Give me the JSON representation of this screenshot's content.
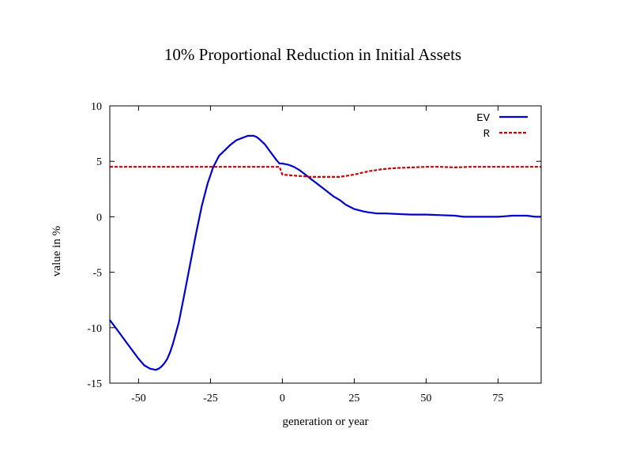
{
  "chart_data": {
    "type": "line",
    "title": "10% Proportional Reduction in Initial Assets",
    "xlabel": "generation or year",
    "ylabel": "value in %",
    "xlim": [
      -60,
      90
    ],
    "ylim": [
      -15,
      10
    ],
    "xticks": [
      -50,
      -25,
      0,
      25,
      50,
      75
    ],
    "yticks": [
      10,
      5,
      0,
      -5,
      -10,
      -15
    ],
    "grid": false,
    "legend_position": "top-right",
    "series": [
      {
        "name": "EV",
        "color": "#0000cc",
        "style": "solid",
        "x": [
          -60,
          -58,
          -56,
          -54,
          -52,
          -50,
          -48,
          -46,
          -44,
          -43,
          -42,
          -41,
          -40,
          -39,
          -38,
          -36,
          -34,
          -32,
          -30,
          -28,
          -26,
          -24,
          -22,
          -20,
          -18,
          -16,
          -14,
          -12,
          -10,
          -9,
          -8,
          -6,
          -4,
          -2,
          -1,
          0,
          2,
          4,
          6,
          8,
          10,
          12,
          14,
          16,
          18,
          20,
          22,
          25,
          28,
          30,
          33,
          36,
          40,
          45,
          50,
          55,
          60,
          63,
          65,
          70,
          75,
          80,
          85,
          88,
          90
        ],
        "y": [
          -9.3,
          -10.0,
          -10.7,
          -11.4,
          -12.1,
          -12.8,
          -13.4,
          -13.7,
          -13.8,
          -13.7,
          -13.5,
          -13.2,
          -12.8,
          -12.2,
          -11.4,
          -9.5,
          -6.9,
          -4.2,
          -1.5,
          1.0,
          3.0,
          4.5,
          5.5,
          6.0,
          6.5,
          6.9,
          7.1,
          7.3,
          7.3,
          7.2,
          7.0,
          6.5,
          5.8,
          5.1,
          4.8,
          4.8,
          4.7,
          4.5,
          4.2,
          3.8,
          3.4,
          3.0,
          2.6,
          2.2,
          1.8,
          1.5,
          1.1,
          0.7,
          0.5,
          0.4,
          0.3,
          0.3,
          0.25,
          0.2,
          0.2,
          0.15,
          0.1,
          0.0,
          0.0,
          0.0,
          0.0,
          0.1,
          0.1,
          0.0,
          0.0
        ]
      },
      {
        "name": "R",
        "color": "#cc0000",
        "style": "dashed",
        "x": [
          -60,
          -20,
          -1,
          0,
          5,
          10,
          15,
          20,
          25,
          30,
          35,
          40,
          45,
          50,
          55,
          60,
          65,
          70,
          75,
          80,
          85,
          90
        ],
        "y": [
          4.5,
          4.5,
          4.5,
          3.8,
          3.7,
          3.6,
          3.6,
          3.6,
          3.8,
          4.1,
          4.3,
          4.4,
          4.45,
          4.5,
          4.5,
          4.45,
          4.5,
          4.5,
          4.5,
          4.5,
          4.5,
          4.5
        ]
      }
    ]
  }
}
